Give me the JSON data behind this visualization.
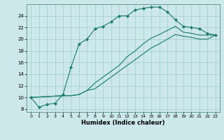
{
  "xlabel": "Humidex (Indice chaleur)",
  "bg_color": "#cce8ea",
  "grid_color": "#9ecdd1",
  "line_color": "#1a7a6e",
  "xlim": [
    -0.5,
    23.5
  ],
  "ylim": [
    7.5,
    26.0
  ],
  "yticks": [
    8,
    10,
    12,
    14,
    16,
    18,
    20,
    22,
    24
  ],
  "xticks": [
    0,
    1,
    2,
    3,
    4,
    5,
    6,
    7,
    8,
    9,
    10,
    11,
    12,
    13,
    14,
    15,
    16,
    17,
    18,
    19,
    20,
    21,
    22,
    23
  ],
  "curve1_x": [
    0,
    1,
    2,
    3,
    4,
    5,
    6,
    7,
    8,
    9,
    10,
    11,
    12,
    13,
    14,
    15,
    16,
    17,
    18,
    19,
    20,
    21,
    22,
    23
  ],
  "curve1_y": [
    10,
    8.3,
    8.8,
    9.0,
    10.5,
    15.2,
    19.2,
    20.0,
    21.8,
    22.2,
    23.0,
    24.0,
    24.0,
    25.0,
    25.3,
    25.5,
    25.5,
    24.7,
    23.3,
    22.2,
    22.0,
    21.8,
    21.0,
    20.7
  ],
  "curve2_x": [
    0,
    4,
    5,
    6,
    7,
    8,
    9,
    10,
    11,
    12,
    13,
    14,
    15,
    16,
    17,
    18,
    19,
    20,
    21,
    22,
    23
  ],
  "curve2_y": [
    10,
    10.3,
    10.3,
    10.5,
    11.2,
    12.5,
    13.5,
    14.5,
    15.5,
    17.0,
    18.0,
    19.2,
    20.2,
    20.8,
    21.5,
    22.2,
    21.2,
    21.0,
    20.7,
    20.7,
    20.7
  ],
  "curve3_x": [
    0,
    4,
    5,
    6,
    7,
    8,
    9,
    10,
    11,
    12,
    13,
    14,
    15,
    16,
    17,
    18,
    19,
    20,
    21,
    22,
    23
  ],
  "curve3_y": [
    10,
    10.3,
    10.3,
    10.5,
    11.2,
    11.5,
    12.5,
    13.5,
    14.5,
    15.5,
    16.5,
    17.5,
    18.5,
    19.2,
    20.0,
    20.8,
    20.5,
    20.3,
    20.0,
    20.0,
    20.7
  ]
}
